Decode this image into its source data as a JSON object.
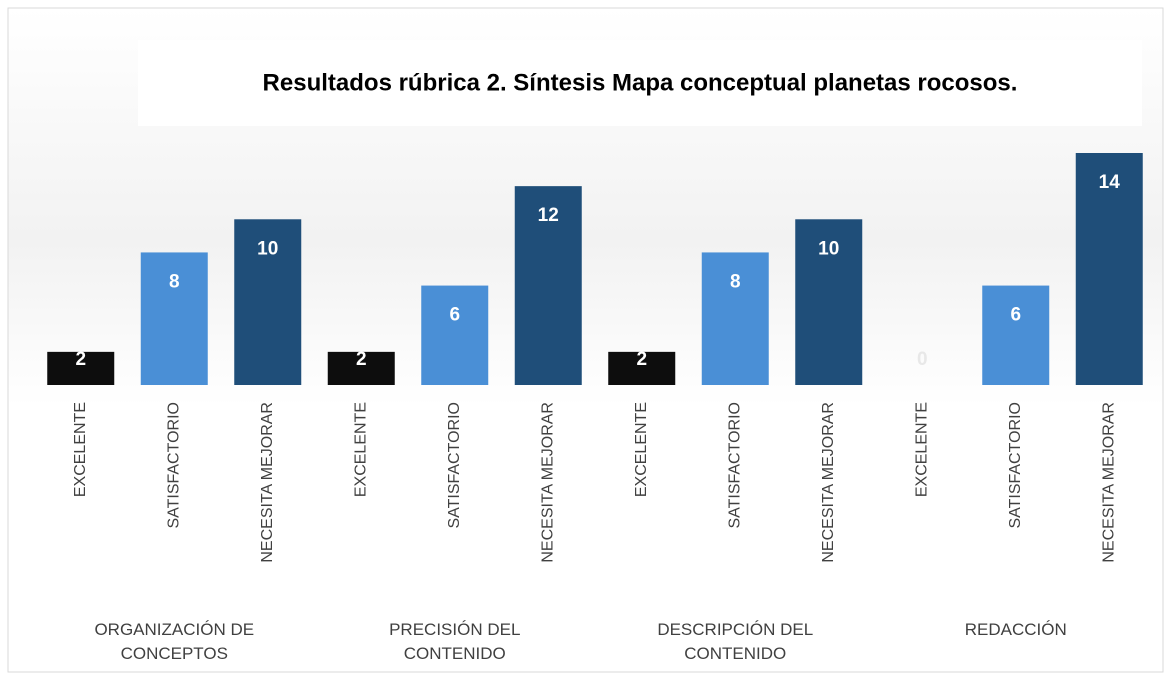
{
  "chart_data": {
    "type": "bar",
    "title": "Resultados rúbrica 2.  Síntesis Mapa conceptual planetas rocosos.",
    "categories": [
      "ORGANIZACIÓN DE CONCEPTOS",
      "PRECISIÓN DEL CONTENIDO",
      "DESCRIPCIÓN DEL CONTENIDO",
      "REDACCIÓN"
    ],
    "series": [
      {
        "name": "EXCELENTE",
        "color": "#0d0d0d",
        "values": [
          2,
          2,
          2,
          0
        ]
      },
      {
        "name": "SATISFACTORIO",
        "color": "#4a8fd6",
        "values": [
          8,
          6,
          8,
          6
        ]
      },
      {
        "name": "NECESITA MEJORAR",
        "color": "#1f4e79",
        "values": [
          10,
          12,
          10,
          14
        ]
      }
    ]
  }
}
